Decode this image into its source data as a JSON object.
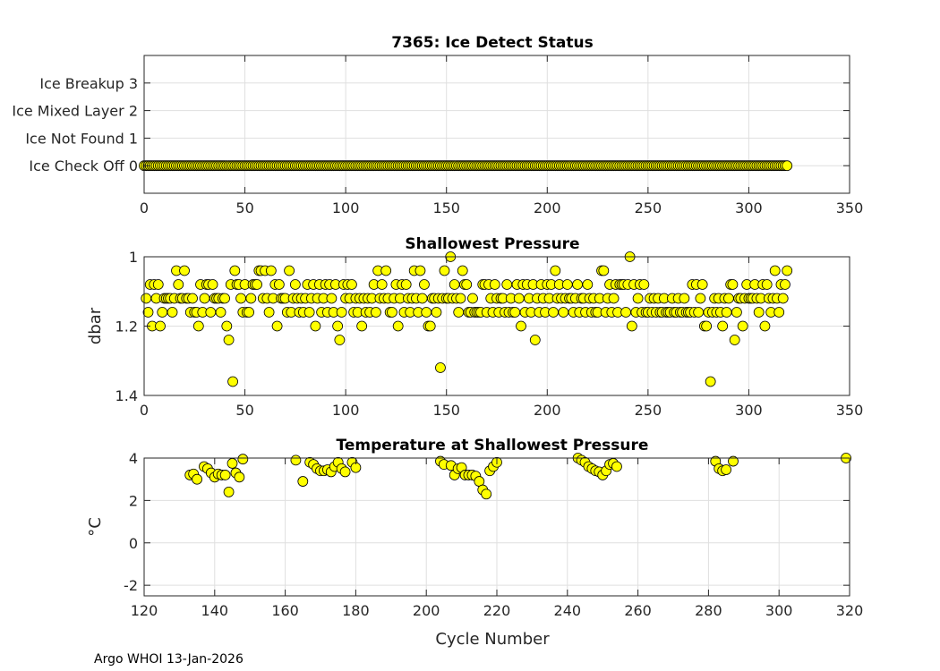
{
  "footer": "Argo WHOI 13-Jan-2026",
  "marker_color": "#ffff00",
  "chart_data": [
    {
      "type": "scatter",
      "title": "7365: Ice Detect Status",
      "xlabel": "",
      "ylabel": "",
      "xlim": [
        0,
        350
      ],
      "ylim": [
        -1,
        4
      ],
      "xticks": [
        0,
        50,
        100,
        150,
        200,
        250,
        300,
        350
      ],
      "yticks": [
        0,
        1,
        2,
        3
      ],
      "ytick_labels": [
        "Ice Check Off 0",
        "Ice Not Found 1",
        "Ice Mixed Layer 2",
        "Ice Breakup 3"
      ],
      "grid": true,
      "x_range": [
        0,
        319
      ],
      "constant_value": 0
    },
    {
      "type": "scatter",
      "title": "Shallowest Pressure",
      "xlabel": "",
      "ylabel": "dbar",
      "xlim": [
        0,
        350
      ],
      "ylim": [
        1,
        1.4
      ],
      "y_reversed": true,
      "xticks": [
        0,
        50,
        100,
        150,
        200,
        250,
        300,
        350
      ],
      "yticks": [
        1,
        1.2,
        1.4
      ],
      "ytick_labels": [
        "1",
        "1.2",
        "1.4"
      ],
      "grid": true,
      "x_start": 1,
      "values": [
        1.12,
        1.16,
        1.08,
        1.2,
        1.08,
        1.12,
        1.08,
        1.2,
        1.16,
        1.12,
        1.12,
        1.12,
        1.12,
        1.16,
        1.12,
        1.04,
        1.08,
        1.12,
        1.12,
        1.04,
        1.12,
        1.12,
        1.16,
        1.12,
        1.16,
        1.16,
        1.2,
        1.08,
        1.16,
        1.12,
        1.08,
        1.08,
        1.16,
        1.08,
        1.12,
        1.12,
        1.12,
        1.16,
        1.12,
        1.12,
        1.2,
        1.24,
        1.08,
        1.36,
        1.04,
        1.08,
        1.08,
        1.12,
        1.16,
        1.08,
        1.16,
        1.16,
        1.12,
        1.08,
        1.08,
        1.08,
        1.04,
        1.04,
        1.12,
        1.04,
        1.12,
        1.16,
        1.04,
        1.12,
        1.08,
        1.2,
        1.08,
        1.12,
        1.12,
        1.12,
        1.16,
        1.04,
        1.16,
        1.12,
        1.08,
        1.12,
        1.16,
        1.12,
        1.16,
        1.12,
        1.08,
        1.16,
        1.12,
        1.08,
        1.2,
        1.12,
        1.08,
        1.16,
        1.12,
        1.08,
        1.16,
        1.08,
        1.12,
        1.16,
        1.08,
        1.2,
        1.24,
        1.16,
        1.08,
        1.12,
        1.08,
        1.12,
        1.08,
        1.16,
        1.12,
        1.16,
        1.12,
        1.2,
        1.12,
        1.16,
        1.12,
        1.16,
        1.12,
        1.08,
        1.16,
        1.04,
        1.12,
        1.08,
        1.12,
        1.04,
        1.12,
        1.16,
        1.16,
        1.12,
        1.08,
        1.2,
        1.12,
        1.08,
        1.16,
        1.08,
        1.12,
        1.16,
        1.12,
        1.04,
        1.12,
        1.16,
        1.04,
        1.12,
        1.08,
        1.16,
        1.2,
        1.2,
        1.12,
        1.12,
        1.16,
        1.12,
        1.32,
        1.12,
        1.04,
        1.12,
        1.12,
        1.0,
        1.12,
        1.08,
        1.12,
        1.16,
        1.12,
        1.04,
        1.08,
        1.08,
        1.16,
        1.16,
        1.12,
        1.16,
        1.16,
        1.16,
        1.16,
        1.08,
        1.08,
        1.16,
        1.08,
        1.12,
        1.16,
        1.08,
        1.12,
        1.16,
        1.12,
        1.12,
        1.16,
        1.08,
        1.16,
        1.12,
        1.16,
        1.16,
        1.08,
        1.12,
        1.2,
        1.08,
        1.16,
        1.08,
        1.12,
        1.16,
        1.08,
        1.24,
        1.12,
        1.16,
        1.08,
        1.12,
        1.16,
        1.08,
        1.12,
        1.08,
        1.16,
        1.04,
        1.12,
        1.08,
        1.12,
        1.16,
        1.12,
        1.08,
        1.12,
        1.12,
        1.16,
        1.12,
        1.08,
        1.16,
        1.12,
        1.12,
        1.16,
        1.08,
        1.12,
        1.16,
        1.12,
        1.16,
        1.16,
        1.12,
        1.04,
        1.04,
        1.16,
        1.12,
        1.08,
        1.16,
        1.12,
        1.08,
        1.16,
        1.08,
        1.08,
        1.08,
        1.16,
        1.08,
        1.0,
        1.2,
        1.08,
        1.16,
        1.12,
        1.08,
        1.16,
        1.08,
        1.16,
        1.16,
        1.12,
        1.16,
        1.12,
        1.16,
        1.12,
        1.16,
        1.16,
        1.12,
        1.16,
        1.16,
        1.16,
        1.12,
        1.16,
        1.16,
        1.12,
        1.16,
        1.16,
        1.12,
        1.16,
        1.16,
        1.16,
        1.08,
        1.16,
        1.08,
        1.16,
        1.12,
        1.08,
        1.2,
        1.2,
        1.16,
        1.36,
        1.16,
        1.12,
        1.16,
        1.12,
        1.16,
        1.2,
        1.12,
        1.16,
        1.12,
        1.08,
        1.08,
        1.24,
        1.16,
        1.12,
        1.12,
        1.2,
        1.12,
        1.08,
        1.12,
        1.12,
        1.12,
        1.08,
        1.12,
        1.16,
        1.12,
        1.08,
        1.2,
        1.08,
        1.12,
        1.16,
        1.12,
        1.04,
        1.12,
        1.16,
        1.08,
        1.12,
        1.08,
        1.04
      ]
    },
    {
      "type": "scatter",
      "title": "Temperature at Shallowest Pressure",
      "xlabel": "Cycle Number",
      "ylabel": "°C",
      "xlim": [
        120,
        320
      ],
      "ylim": [
        -2.5,
        4
      ],
      "xticks": [
        120,
        140,
        160,
        180,
        200,
        220,
        240,
        260,
        280,
        300,
        320
      ],
      "yticks": [
        -2,
        0,
        2,
        4
      ],
      "ytick_labels": [
        "-2",
        "0",
        "2",
        "4"
      ],
      "grid": true,
      "points": [
        [
          133,
          3.2
        ],
        [
          134,
          3.25
        ],
        [
          135,
          3.0
        ],
        [
          137,
          3.6
        ],
        [
          138,
          3.5
        ],
        [
          139,
          3.3
        ],
        [
          140,
          3.1
        ],
        [
          141,
          3.25
        ],
        [
          142,
          3.2
        ],
        [
          143,
          3.2
        ],
        [
          144,
          2.4
        ],
        [
          145,
          3.75
        ],
        [
          146,
          3.3
        ],
        [
          147,
          3.1
        ],
        [
          148,
          3.95
        ],
        [
          163,
          3.9
        ],
        [
          165,
          2.9
        ],
        [
          167,
          3.8
        ],
        [
          168,
          3.7
        ],
        [
          169,
          3.5
        ],
        [
          170,
          3.4
        ],
        [
          171,
          3.4
        ],
        [
          172,
          3.45
        ],
        [
          173,
          3.35
        ],
        [
          174,
          3.6
        ],
        [
          175,
          3.8
        ],
        [
          176,
          3.5
        ],
        [
          177,
          3.35
        ],
        [
          179,
          3.8
        ],
        [
          180,
          3.55
        ],
        [
          204,
          3.85
        ],
        [
          205,
          3.7
        ],
        [
          207,
          3.65
        ],
        [
          208,
          3.2
        ],
        [
          209,
          3.5
        ],
        [
          210,
          3.55
        ],
        [
          211,
          3.2
        ],
        [
          212,
          3.2
        ],
        [
          213,
          3.2
        ],
        [
          214,
          3.15
        ],
        [
          215,
          2.9
        ],
        [
          216,
          2.5
        ],
        [
          217,
          2.3
        ],
        [
          218,
          3.4
        ],
        [
          219,
          3.6
        ],
        [
          220,
          3.8
        ],
        [
          243,
          4.0
        ],
        [
          244,
          3.9
        ],
        [
          245,
          3.8
        ],
        [
          246,
          3.6
        ],
        [
          247,
          3.5
        ],
        [
          248,
          3.4
        ],
        [
          249,
          3.35
        ],
        [
          250,
          3.2
        ],
        [
          251,
          3.4
        ],
        [
          252,
          3.7
        ],
        [
          253,
          3.75
        ],
        [
          254,
          3.6
        ],
        [
          282,
          3.85
        ],
        [
          283,
          3.5
        ],
        [
          284,
          3.4
        ],
        [
          285,
          3.45
        ],
        [
          287,
          3.85
        ],
        [
          319,
          4.0
        ]
      ]
    }
  ]
}
